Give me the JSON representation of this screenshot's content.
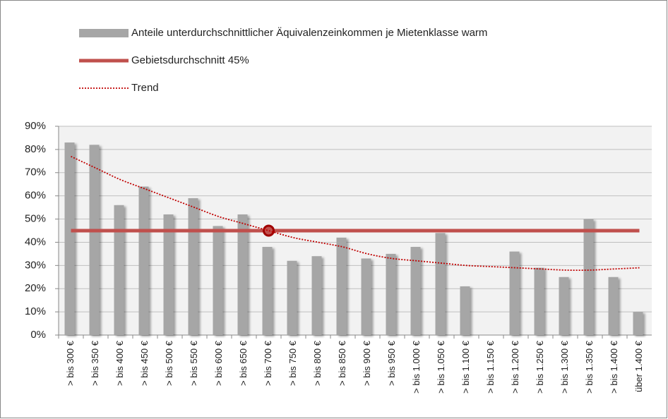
{
  "chart_data": {
    "type": "bar",
    "categories": [
      "> bis 300 €",
      "> bis 350 €",
      "> bis 400 €",
      "> bis 450 €",
      "> bis 500 €",
      "> bis 550 €",
      "> bis 600 €",
      "> bis 650 €",
      "> bis 700 €",
      "> bis 750 €",
      "> bis 800 €",
      "> bis 850 €",
      "> bis 900 €",
      "> bis 950 €",
      "> bis 1.000 €",
      "> bis 1.050 €",
      "> bis 1.100 €",
      "> bis 1.150 €",
      "> bis 1.200 €",
      "> bis 1.250 €",
      "> bis 1.300 €",
      "> bis 1.350 €",
      "> bis 1.400 €",
      "über 1.400 €"
    ],
    "series": [
      {
        "name": "Anteile unterdurchschnittlicher Äquivalenzeinkommen je Mietenklasse warm",
        "type": "bar",
        "color": "#a6a6a6",
        "values": [
          83,
          82,
          56,
          64,
          52,
          59,
          47,
          52,
          38,
          32,
          34,
          42,
          33,
          35,
          38,
          44,
          21,
          null,
          36,
          29,
          25,
          50,
          25,
          10
        ]
      },
      {
        "name": "Gebietsdurchschnitt 45%",
        "type": "line",
        "color": "#c0504d",
        "marker_index": 8,
        "values": [
          45,
          45,
          45,
          45,
          45,
          45,
          45,
          45,
          45,
          45,
          45,
          45,
          45,
          45,
          45,
          45,
          45,
          45,
          45,
          45,
          45,
          45,
          45,
          45
        ]
      },
      {
        "name": "Trend",
        "type": "dotted",
        "color": "#c00000",
        "values": [
          77,
          72,
          67,
          63,
          59,
          55,
          51,
          48,
          45,
          42,
          40,
          38,
          35,
          33,
          32,
          31,
          30,
          29.5,
          29,
          28.5,
          28,
          28,
          28.5,
          29
        ]
      }
    ],
    "ylim": [
      0,
      90
    ],
    "yticks": [
      {
        "value": 0,
        "label": "0%"
      },
      {
        "value": 10,
        "label": "10%"
      },
      {
        "value": 20,
        "label": "20%"
      },
      {
        "value": 30,
        "label": "30%"
      },
      {
        "value": 40,
        "label": "40%"
      },
      {
        "value": 50,
        "label": "50%"
      },
      {
        "value": 60,
        "label": "60%"
      },
      {
        "value": 70,
        "label": "70%"
      },
      {
        "value": 80,
        "label": "80%"
      },
      {
        "value": 90,
        "label": "90%"
      }
    ],
    "grid": true
  }
}
